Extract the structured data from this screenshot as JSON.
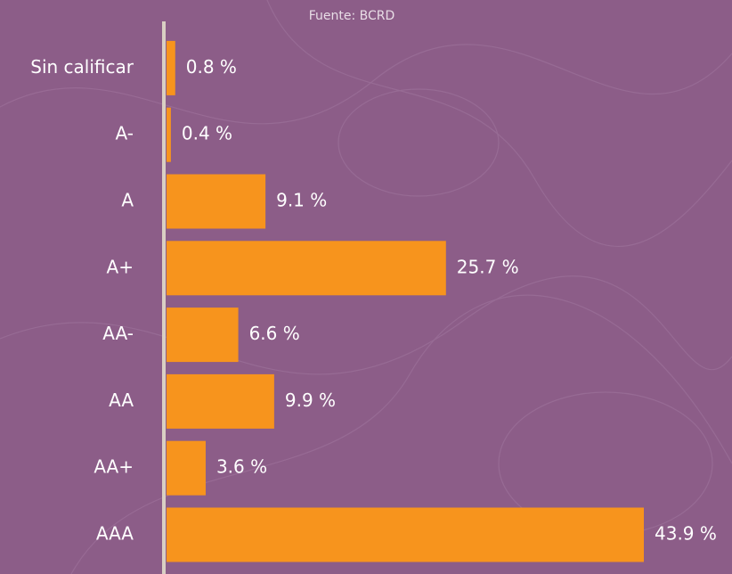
{
  "chart_data": {
    "type": "bar",
    "orientation": "horizontal",
    "source": "Fuente: BCRD",
    "categories": [
      "Sin calificar",
      "A-",
      "A",
      "A+",
      "AA-",
      "AA",
      "AA+",
      "AAA"
    ],
    "values": [
      0.8,
      0.4,
      9.1,
      25.7,
      6.6,
      9.9,
      3.6,
      43.9
    ],
    "value_labels": [
      "0.8 %",
      "0.4 %",
      "9.1 %",
      "25.7 %",
      "6.6 %",
      "9.9 %",
      "3.6 %",
      "43.9 %"
    ],
    "color": "#f7941d"
  }
}
